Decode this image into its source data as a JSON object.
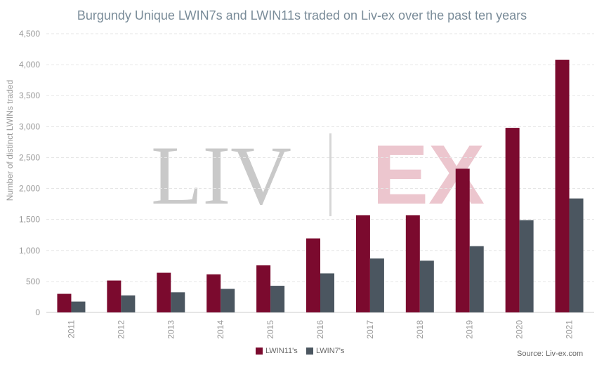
{
  "source_note": "Source: Liv-ex.com",
  "watermark": {
    "left": "LIV",
    "right": "EX"
  },
  "colors": {
    "lwin11": "#7b0a2e",
    "lwin7": "#4b5660",
    "grid": "#e6e6e6",
    "axis_text": "#999999"
  },
  "chart_data": {
    "type": "bar",
    "title": "Burgundy Unique LWIN7s and LWIN11s traded on Liv-ex over the past ten years",
    "xlabel": "",
    "ylabel": "Number of distinct LWINs traded",
    "ylim": [
      0,
      4500
    ],
    "yticks": [
      0,
      500,
      1000,
      1500,
      2000,
      2500,
      3000,
      3500,
      4000,
      4500
    ],
    "ytick_labels": [
      "0",
      "500",
      "1,000",
      "1,500",
      "2,000",
      "2,500",
      "3,000",
      "3,500",
      "4,000",
      "4,500"
    ],
    "categories": [
      "2011",
      "2012",
      "2013",
      "2014",
      "2015",
      "2016",
      "2017",
      "2018",
      "2019",
      "2020",
      "2021"
    ],
    "grid": true,
    "legend_position": "bottom",
    "series": [
      {
        "name": "LWIN11's",
        "color": "#7b0a2e",
        "values": [
          300,
          515,
          640,
          615,
          760,
          1195,
          1570,
          1570,
          2320,
          2980,
          4080
        ]
      },
      {
        "name": "LWIN7's",
        "color": "#4b5660",
        "values": [
          175,
          275,
          325,
          380,
          430,
          630,
          870,
          835,
          1070,
          1490,
          1840
        ]
      }
    ]
  }
}
